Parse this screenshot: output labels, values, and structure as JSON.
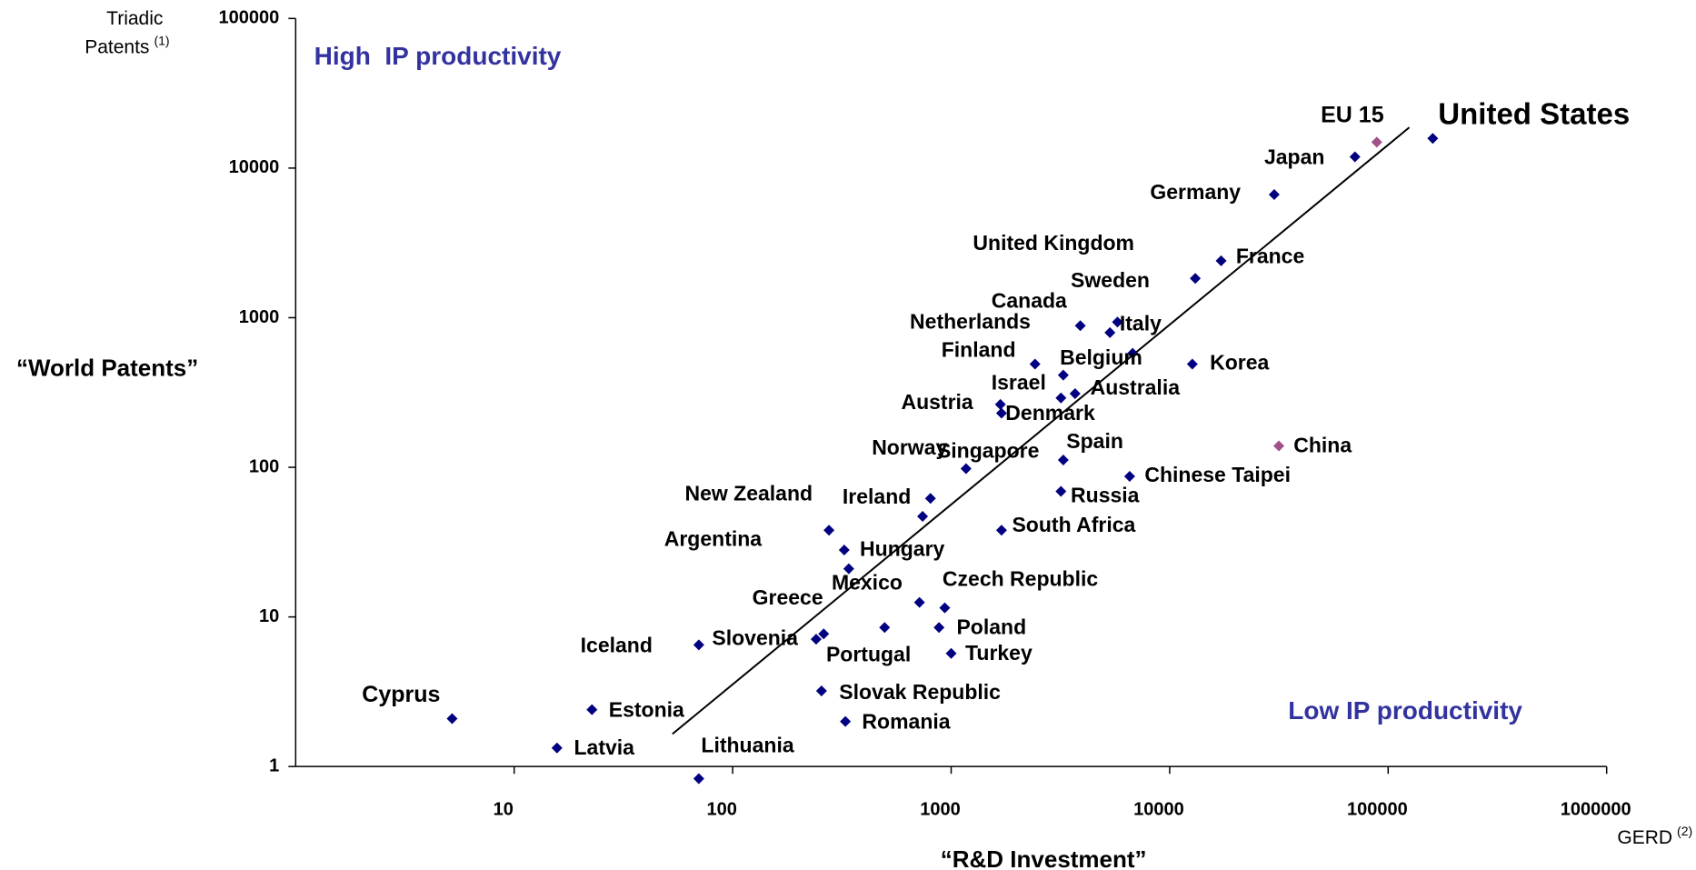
{
  "chart_data": {
    "type": "scatter",
    "x_label": "“R&D Investment”",
    "y_label": "“World Patents”",
    "x_unit": {
      "text": "GERD",
      "note": "(2)"
    },
    "y_unit": {
      "lines": [
        "Triadic",
        "Patents"
      ],
      "note": "(1)"
    },
    "annotations": [
      "High  IP productivity",
      "Low IP productivity"
    ],
    "log_x": true,
    "log_y": true,
    "grid": false,
    "xlim": [
      1,
      1000000
    ],
    "ylim": [
      1,
      100000
    ],
    "xticks": [
      10,
      100,
      1000,
      10000,
      100000,
      1000000
    ],
    "yticks": [
      1,
      10,
      100,
      1000,
      10000,
      100000
    ],
    "color": "#000080",
    "trendline": {
      "x": [
        53,
        125000
      ],
      "y": [
        1.65,
        18700
      ],
      "color": "#000000"
    },
    "points": [
      {
        "name": "United States",
        "x": 160000,
        "y": 15800,
        "color": "#000080"
      },
      {
        "name": "EU 15",
        "x": 88700,
        "y": 14900,
        "color": "#a0508a"
      },
      {
        "name": "Japan",
        "x": 70500,
        "y": 11900,
        "color": "#000080"
      },
      {
        "name": "Germany",
        "x": 30100,
        "y": 6650,
        "color": "#000080"
      },
      {
        "name": "France",
        "x": 17200,
        "y": 2400,
        "color": "#000080"
      },
      {
        "name": "United Kingdom",
        "x": 13100,
        "y": 1830,
        "color": "#000080"
      },
      {
        "name": "Sweden",
        "x": 5770,
        "y": 935,
        "color": "#000080"
      },
      {
        "name": "Canada",
        "x": 5330,
        "y": 795,
        "color": "#000080"
      },
      {
        "name": "Netherlands",
        "x": 3900,
        "y": 885,
        "color": "#000080"
      },
      {
        "name": "Italy",
        "x": 6770,
        "y": 578,
        "color": "#000080"
      },
      {
        "name": "Korea",
        "x": 12700,
        "y": 490,
        "color": "#000080"
      },
      {
        "name": "Finland",
        "x": 2420,
        "y": 490,
        "color": "#000080"
      },
      {
        "name": "Belgium",
        "x": 3260,
        "y": 413,
        "color": "#000080"
      },
      {
        "name": "Israel",
        "x": 3180,
        "y": 291,
        "color": "#000080"
      },
      {
        "name": "Australia",
        "x": 3690,
        "y": 311,
        "color": "#000080"
      },
      {
        "name": "Austria",
        "x": 1680,
        "y": 263,
        "color": "#000080"
      },
      {
        "name": "Denmark",
        "x": 1700,
        "y": 230,
        "color": "#000080"
      },
      {
        "name": "China",
        "x": 31600,
        "y": 139,
        "color": "#a0508a"
      },
      {
        "name": "Spain",
        "x": 3260,
        "y": 112,
        "color": "#000080"
      },
      {
        "name": "Norway",
        "x": 1170,
        "y": 98,
        "color": "#000080"
      },
      {
        "name": "Singapore",
        "x": 740,
        "y": 47,
        "color": "#000080"
      },
      {
        "name": "Chinese Taipei",
        "x": 6560,
        "y": 87,
        "color": "#000080"
      },
      {
        "name": "Russia",
        "x": 3180,
        "y": 69,
        "color": "#000080"
      },
      {
        "name": "New Zealand",
        "x": 276,
        "y": 38,
        "color": "#000080"
      },
      {
        "name": "Ireland",
        "x": 804,
        "y": 62,
        "color": "#000080"
      },
      {
        "name": "South Africa",
        "x": 1700,
        "y": 38,
        "color": "#000080"
      },
      {
        "name": "Argentina",
        "x": 340,
        "y": 21,
        "color": "#000080"
      },
      {
        "name": "Hungary",
        "x": 324,
        "y": 28,
        "color": "#000080"
      },
      {
        "name": "Czech Republic",
        "x": 935,
        "y": 11.5,
        "color": "#000080"
      },
      {
        "name": "Mexico",
        "x": 716,
        "y": 12.5,
        "color": "#000080"
      },
      {
        "name": "Greece",
        "x": 496,
        "y": 8.5,
        "color": "#000080"
      },
      {
        "name": "Poland",
        "x": 880,
        "y": 8.5,
        "color": "#000080"
      },
      {
        "name": "Slovenia",
        "x": 261,
        "y": 7.7,
        "color": "#000080"
      },
      {
        "name": "Iceland",
        "x": 70,
        "y": 6.5,
        "color": "#000080"
      },
      {
        "name": "Turkey",
        "x": 1000,
        "y": 5.7,
        "color": "#000080"
      },
      {
        "name": "Portugal",
        "x": 241,
        "y": 7.1,
        "color": "#000080"
      },
      {
        "name": "Slovak Republic",
        "x": 255,
        "y": 3.2,
        "color": "#000080"
      },
      {
        "name": "Cyprus",
        "x": 5.2,
        "y": 2.09,
        "color": "#000080"
      },
      {
        "name": "Estonia",
        "x": 22.7,
        "y": 2.4,
        "color": "#000080"
      },
      {
        "name": "Romania",
        "x": 328,
        "y": 2.0,
        "color": "#000080"
      },
      {
        "name": "Latvia",
        "x": 15.7,
        "y": 1.33,
        "color": "#000080"
      },
      {
        "name": "Lithuania",
        "x": 70,
        "y": 0.83,
        "color": "#000080"
      }
    ]
  }
}
